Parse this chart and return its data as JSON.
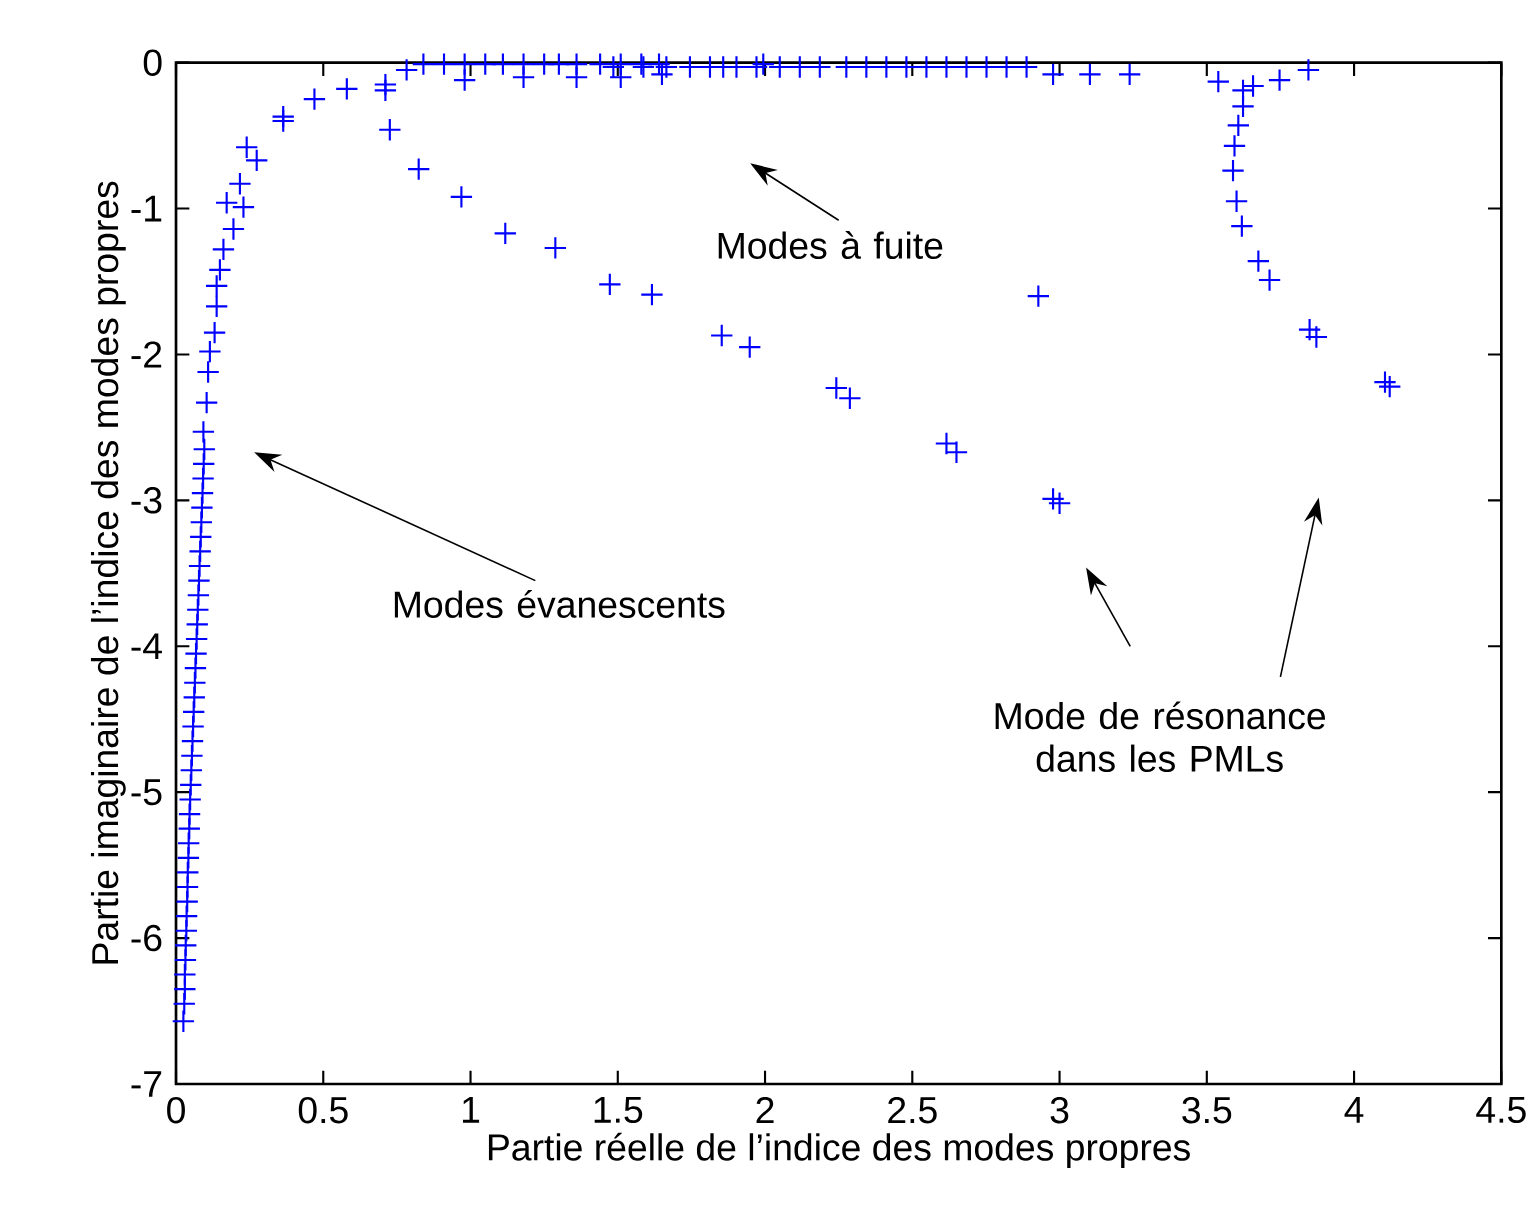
{
  "chart_data": {
    "type": "scatter",
    "xlabel": "Partie réelle de l’indice des modes propres",
    "ylabel": "Partie imaginaire de l’indice des modes propres",
    "xlim": [
      0,
      4.5
    ],
    "ylim": [
      -7,
      0
    ],
    "xticks": [
      0,
      0.5,
      1,
      1.5,
      2,
      2.5,
      3,
      3.5,
      4,
      4.5
    ],
    "yticks": [
      -7,
      -6,
      -5,
      -4,
      -3,
      -2,
      -1,
      0
    ],
    "marker": "cross",
    "grid": false,
    "annotations": [
      "Modes à fuite",
      "Modes évanescents",
      "Mode de résonance dans les PMLs"
    ],
    "series": [
      {
        "color": "#0000ff",
        "x": [
          0.025,
          0.028,
          0.03,
          0.03,
          0.032,
          0.033,
          0.035,
          0.036,
          0.038,
          0.039,
          0.04,
          0.042,
          0.043,
          0.045,
          0.046,
          0.048,
          0.05,
          0.052,
          0.054,
          0.056,
          0.058,
          0.06,
          0.062,
          0.064,
          0.066,
          0.068,
          0.07,
          0.072,
          0.074,
          0.076,
          0.078,
          0.08,
          0.082,
          0.084,
          0.086,
          0.088,
          0.09,
          0.092,
          0.094,
          0.096,
          0.093,
          0.104,
          0.109,
          0.115,
          0.131,
          0.138,
          0.138,
          0.149,
          0.161,
          0.195,
          0.172,
          0.229,
          0.217,
          0.274,
          0.24,
          0.364,
          0.364,
          0.47,
          0.58,
          0.711,
          0.711,
          0.783,
          0.84,
          0.91,
          0.98,
          1.05,
          1.11,
          1.18,
          1.25,
          1.3,
          1.36,
          1.44,
          1.51,
          1.58,
          1.64,
          0.98,
          1.18,
          1.36,
          1.51,
          1.65,
          1.485,
          1.587,
          1.665,
          1.745,
          1.813,
          1.858,
          1.903,
          1.971,
          1.994,
          2.05,
          2.118,
          2.186,
          2.276,
          2.344,
          2.412,
          2.48,
          2.548,
          2.616,
          2.684,
          2.752,
          2.82,
          2.888,
          2.978,
          3.103,
          3.238,
          0.726,
          0.824,
          0.969,
          1.118,
          1.288,
          1.473,
          1.616,
          1.853,
          1.948,
          2.242,
          2.288,
          2.616,
          2.65,
          2.978,
          3.0,
          2.928,
          3.539,
          3.623,
          3.657,
          3.747,
          3.845,
          3.623,
          3.607,
          3.594,
          3.589,
          3.601,
          3.619,
          3.675,
          3.713,
          3.849,
          3.872,
          4.105,
          4.121
        ],
        "values": [
          -6.57,
          -6.45,
          -6.35,
          -6.25,
          -6.15,
          -6.05,
          -5.95,
          -5.85,
          -5.75,
          -5.65,
          -5.55,
          -5.45,
          -5.35,
          -5.25,
          -5.15,
          -5.05,
          -4.95,
          -4.85,
          -4.75,
          -4.65,
          -4.55,
          -4.45,
          -4.35,
          -4.25,
          -4.15,
          -4.05,
          -3.95,
          -3.85,
          -3.75,
          -3.65,
          -3.55,
          -3.45,
          -3.35,
          -3.25,
          -3.15,
          -3.05,
          -2.95,
          -2.85,
          -2.75,
          -2.65,
          -2.53,
          -2.33,
          -2.12,
          -1.98,
          -1.85,
          -1.67,
          -1.53,
          -1.42,
          -1.28,
          -1.14,
          -0.96,
          -0.99,
          -0.83,
          -0.67,
          -0.58,
          -0.4,
          -0.37,
          -0.25,
          -0.18,
          -0.15,
          -0.19,
          -0.05,
          -0.01,
          -0.01,
          -0.01,
          -0.01,
          -0.01,
          -0.01,
          -0.01,
          -0.01,
          -0.01,
          -0.01,
          -0.01,
          -0.01,
          -0.01,
          -0.12,
          -0.1,
          -0.1,
          -0.1,
          -0.08,
          -0.03,
          -0.03,
          -0.03,
          -0.03,
          -0.03,
          -0.03,
          -0.03,
          -0.03,
          -0.01,
          -0.03,
          -0.03,
          -0.03,
          -0.03,
          -0.03,
          -0.03,
          -0.03,
          -0.03,
          -0.03,
          -0.03,
          -0.03,
          -0.03,
          -0.03,
          -0.08,
          -0.08,
          -0.08,
          -0.46,
          -0.73,
          -0.92,
          -1.17,
          -1.27,
          -1.52,
          -1.59,
          -1.87,
          -1.95,
          -2.23,
          -2.3,
          -2.61,
          -2.67,
          -2.99,
          -3.02,
          -1.6,
          -0.13,
          -0.19,
          -0.16,
          -0.12,
          -0.05,
          -0.3,
          -0.43,
          -0.57,
          -0.74,
          -0.95,
          -1.12,
          -1.36,
          -1.49,
          -1.83,
          -1.88,
          -2.19,
          -2.22
        ]
      }
    ]
  }
}
